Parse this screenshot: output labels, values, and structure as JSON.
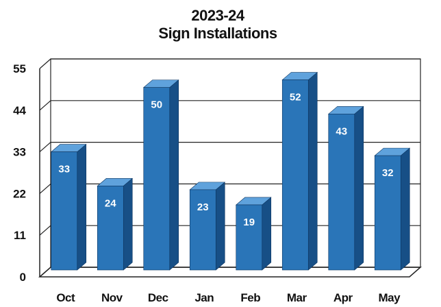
{
  "chart_data": {
    "type": "bar",
    "title": "2023-24",
    "subtitle": "Sign Installations",
    "xlabel": "",
    "ylabel": "",
    "categories": [
      "Oct",
      "Nov",
      "Dec",
      "Jan",
      "Feb",
      "Mar",
      "Apr",
      "May"
    ],
    "values": [
      33,
      24,
      50,
      23,
      19,
      52,
      43,
      32
    ],
    "value_labels": [
      "33",
      "24",
      "50",
      "23",
      "19",
      "52",
      "43",
      "32"
    ],
    "ylim": [
      0,
      55
    ],
    "yticks": [
      0,
      11,
      22,
      33,
      44,
      55
    ],
    "ytick_labels": [
      "0",
      "11",
      "22",
      "33",
      "44",
      "55"
    ],
    "grid": true,
    "legend": "none",
    "style": "3d"
  },
  "colors": {
    "bar_front": "#2a75b8",
    "bar_top": "#5fa2dc",
    "bar_side": "#174f86",
    "grid": "#222222",
    "text": "#111111"
  }
}
